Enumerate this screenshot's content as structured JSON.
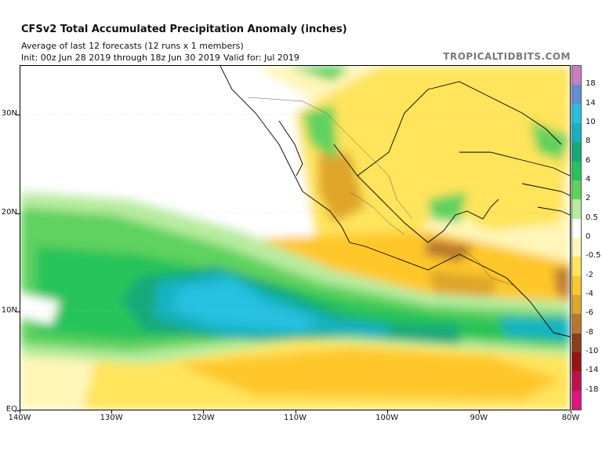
{
  "header": {
    "title": "CFSv2 Total Accumulated Precipitation Anomaly (inches)",
    "subtitle": "Average of last 12 forecasts (12 runs x 1 members)",
    "init": "Init: 00z Jun 28 2019 through 18z Jun 30 2019",
    "valid": "Valid for: Jul 2019",
    "credit": "TROPICALTIDBITS.COM"
  },
  "axes": {
    "lat_labels": [
      "30N",
      "20N",
      "10N",
      "EQ"
    ],
    "lat_values": [
      30,
      20,
      10,
      0
    ],
    "lon_labels": [
      "140W",
      "130W",
      "120W",
      "110W",
      "100W",
      "90W",
      "80W"
    ],
    "lon_values": [
      -140,
      -130,
      -120,
      -110,
      -100,
      -90,
      -80
    ],
    "extent": {
      "lon_min": -140,
      "lon_max": -80,
      "lat_min": 0,
      "lat_max": 35
    }
  },
  "colorbar": {
    "labels": [
      "18",
      "14",
      "10",
      "8",
      "6",
      "4",
      "2",
      "0.5",
      "0",
      "-0.5",
      "-2",
      "-4",
      "-6",
      "-8",
      "-10",
      "-14",
      "-18"
    ],
    "colors": [
      "#c77ec4",
      "#5f8fd6",
      "#25c0e0",
      "#12b3c0",
      "#17a97a",
      "#27c35a",
      "#5fd25e",
      "#b7ec9f",
      "#ffffff",
      "#fff6b8",
      "#ffe45c",
      "#ffc72c",
      "#dfa62a",
      "#b7772d",
      "#8a3e1a",
      "#9a1212",
      "#c0104a",
      "#e0147a"
    ]
  },
  "legend_semantics": {
    "wet": "green to blue",
    "dry": "yellow to brown"
  }
}
